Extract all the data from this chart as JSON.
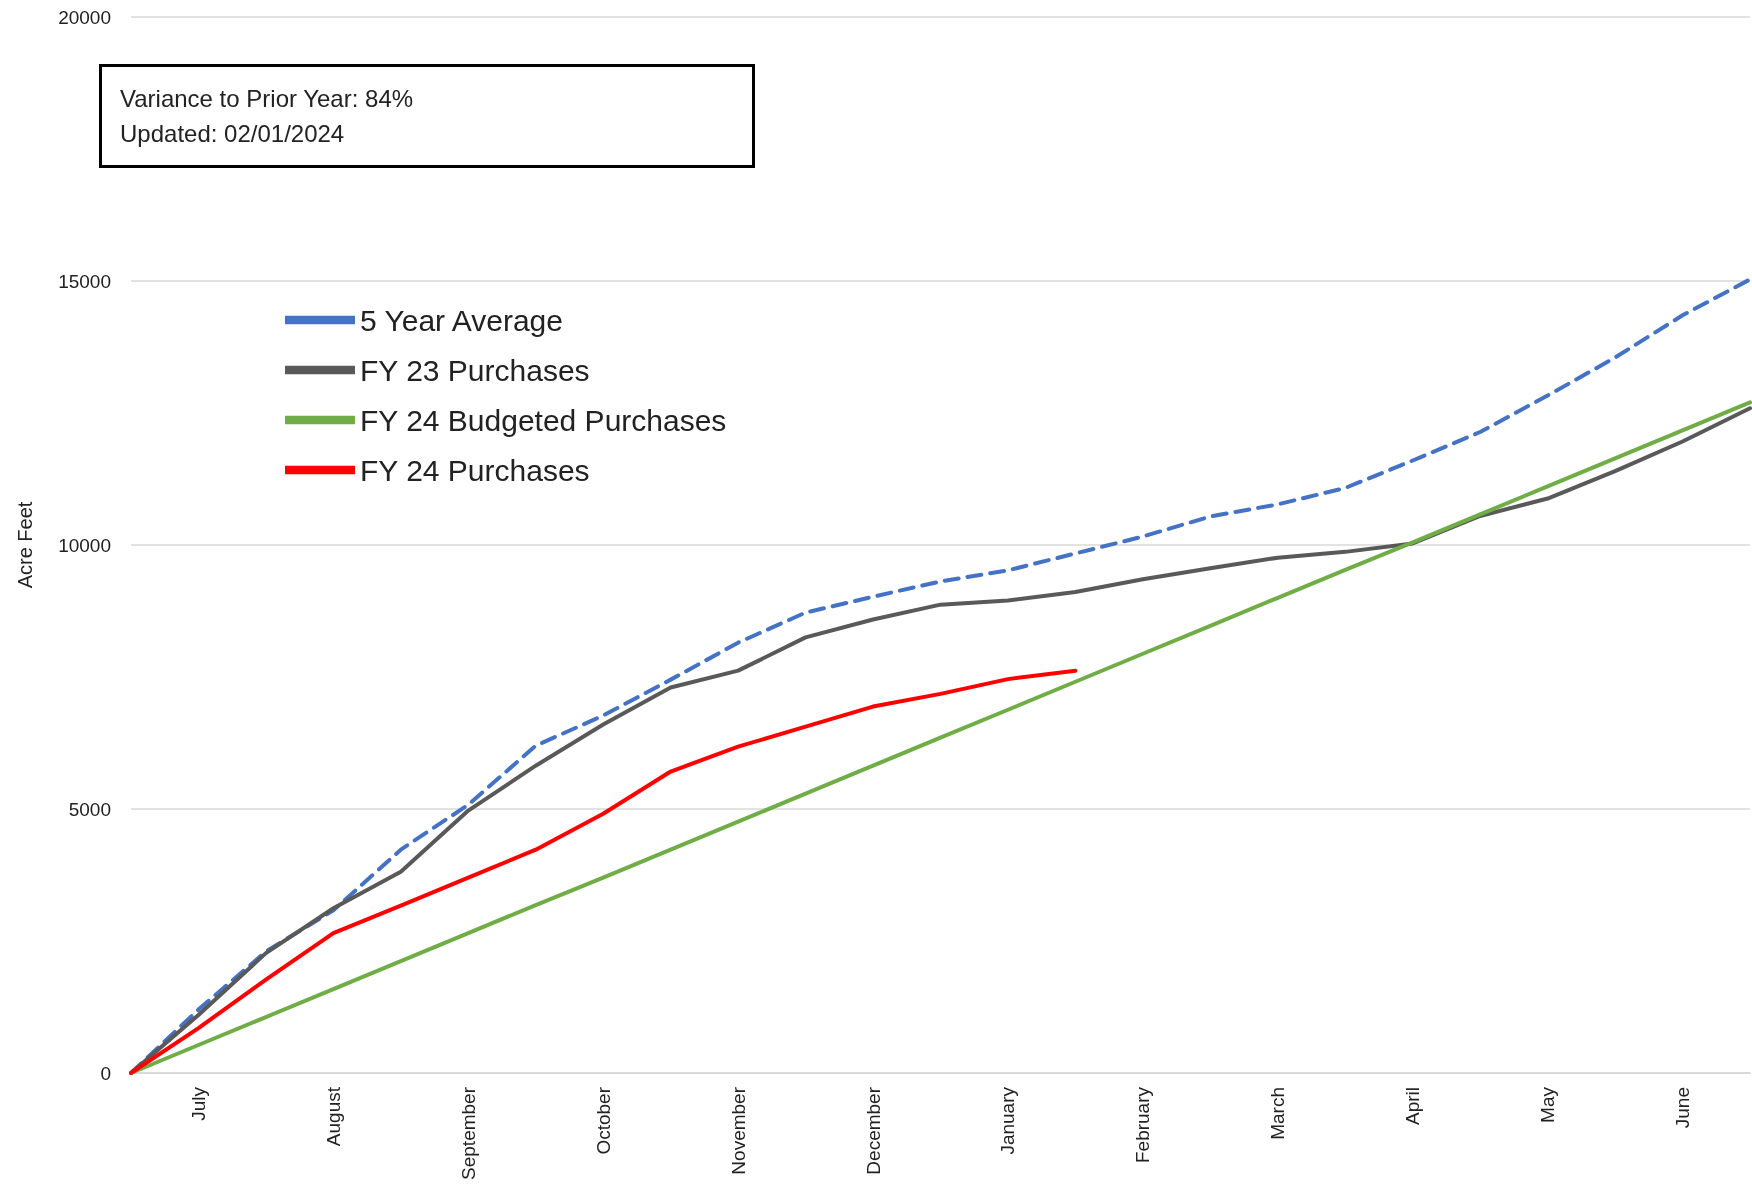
{
  "chart_data": {
    "type": "line",
    "ylabel": "Acre Feet",
    "annotations": [
      "Variance to Prior Year: 84%",
      "Updated: 02/01/2024"
    ],
    "categories": [
      null,
      "July",
      null,
      "August",
      null,
      "September",
      null,
      "October",
      null,
      "November",
      null,
      "December",
      null,
      "January",
      null,
      "February",
      null,
      "March",
      null,
      "April",
      null,
      "May",
      null,
      "June",
      null
    ],
    "ylim": [
      0,
      20000
    ],
    "yticks": [
      0,
      5000,
      10000,
      15000,
      20000
    ],
    "grid": "y",
    "legend": "top left",
    "marker": "none",
    "series": [
      {
        "name": "5 Year Average",
        "color": "#4472c4",
        "line_style": "dashed",
        "values": [
          0,
          1200,
          2300,
          3080,
          4230,
          5080,
          6200,
          6770,
          7450,
          8150,
          8720,
          9020,
          9310,
          9520,
          9840,
          10160,
          10540,
          10770,
          11080,
          11600,
          12140,
          12830,
          13550,
          14350,
          15030
        ]
      },
      {
        "name": "FY 23 Purchases",
        "color": "#595959",
        "line_style": "solid",
        "values": [
          0,
          1100,
          2270,
          3120,
          3810,
          4970,
          5820,
          6600,
          7300,
          7620,
          8250,
          8590,
          8870,
          8950,
          9110,
          9350,
          9560,
          9760,
          9870,
          10030,
          10550,
          10880,
          11400,
          11960,
          12590
        ]
      },
      {
        "name": "FY 24 Budgeted Purchases",
        "color": "#70ad47",
        "line_style": "solid",
        "values": [
          0,
          530,
          1060,
          1590,
          2120,
          2650,
          3180,
          3700,
          4230,
          4760,
          5290,
          5820,
          6350,
          6880,
          7410,
          7940,
          8470,
          9000,
          9530,
          10050,
          10580,
          11110,
          11640,
          12170,
          12700
        ]
      },
      {
        "name": "FY 24 Purchases",
        "color": "#ff0000",
        "line_style": "solid",
        "values": [
          0,
          850,
          1770,
          2650,
          3170,
          3700,
          4230,
          4910,
          5710,
          6180,
          6560,
          6940,
          7180,
          7460,
          7620,
          null,
          null,
          null,
          null,
          null,
          null,
          null,
          null,
          null,
          null
        ]
      }
    ]
  }
}
